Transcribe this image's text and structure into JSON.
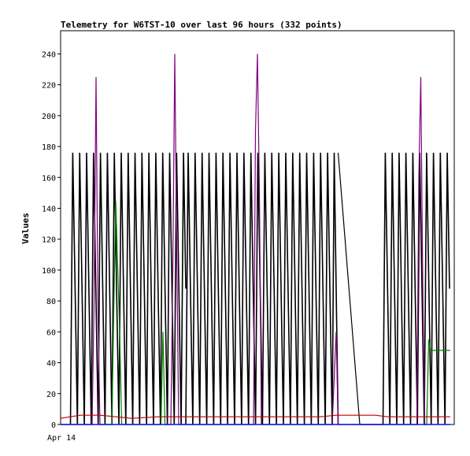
{
  "chart_data": {
    "type": "line",
    "title": "Telemetry for W6TST-10 over last 96 hours (332 points)",
    "xlabel": "",
    "ylabel": "Values",
    "ylim": [
      0,
      255
    ],
    "yticks": [
      0,
      20,
      40,
      60,
      80,
      100,
      120,
      140,
      160,
      180,
      200,
      220,
      240
    ],
    "x_tick_labels": [
      "Apr 14"
    ],
    "grid": false,
    "legend": "none",
    "series": [
      {
        "color": "#000000",
        "note": "oscillating channel (square-ish pulses)",
        "segments": [
          {
            "x_start": 0.025,
            "x_end": 0.318,
            "levels": [
              0,
              176,
              88
            ]
          },
          {
            "x_start": 0.318,
            "x_end": 0.69,
            "levels": [
              0,
              176,
              88
            ]
          },
          {
            "x_start": 0.69,
            "x_end": 0.705,
            "levels": [
              0,
              176,
              88
            ]
          },
          {
            "x_start": 0.819,
            "x_end": 0.988,
            "levels": [
              0,
              176,
              88
            ]
          }
        ]
      },
      {
        "color": "#800080",
        "note": "peaks",
        "points": [
          [
            0.0,
            0
          ],
          [
            0.08,
            0
          ],
          [
            0.085,
            80
          ],
          [
            0.09,
            225
          ],
          [
            0.095,
            70
          ],
          [
            0.1,
            0
          ],
          [
            0.28,
            0
          ],
          [
            0.285,
            100
          ],
          [
            0.29,
            240
          ],
          [
            0.295,
            110
          ],
          [
            0.3,
            0
          ],
          [
            0.49,
            0
          ],
          [
            0.495,
            190
          ],
          [
            0.5,
            240
          ],
          [
            0.505,
            150
          ],
          [
            0.51,
            0
          ],
          [
            0.69,
            0
          ],
          [
            0.7,
            60
          ],
          [
            0.705,
            0
          ],
          [
            0.8,
            0
          ],
          [
            0.905,
            0
          ],
          [
            0.91,
            160
          ],
          [
            0.915,
            225
          ],
          [
            0.92,
            90
          ],
          [
            0.925,
            0
          ],
          [
            0.99,
            0
          ]
        ]
      },
      {
        "color": "#008000",
        "points": [
          [
            0.0,
            0
          ],
          [
            0.13,
            0
          ],
          [
            0.14,
            145
          ],
          [
            0.15,
            60
          ],
          [
            0.155,
            0
          ],
          [
            0.255,
            0
          ],
          [
            0.26,
            60
          ],
          [
            0.265,
            0
          ],
          [
            0.93,
            0
          ],
          [
            0.935,
            55
          ],
          [
            0.94,
            48
          ],
          [
            0.99,
            48
          ]
        ]
      },
      {
        "color": "#c00000",
        "points": [
          [
            0.0,
            4
          ],
          [
            0.05,
            6
          ],
          [
            0.1,
            6
          ],
          [
            0.14,
            5
          ],
          [
            0.18,
            4
          ],
          [
            0.25,
            5
          ],
          [
            0.3,
            5
          ],
          [
            0.4,
            5
          ],
          [
            0.5,
            5
          ],
          [
            0.6,
            5
          ],
          [
            0.66,
            5
          ],
          [
            0.7,
            6
          ],
          [
            0.8,
            6
          ],
          [
            0.83,
            5
          ],
          [
            0.85,
            5
          ],
          [
            0.9,
            5
          ],
          [
            0.99,
            5
          ]
        ]
      },
      {
        "color": "#0000ff",
        "points": [
          [
            0.0,
            0
          ],
          [
            0.99,
            0
          ]
        ]
      }
    ]
  }
}
